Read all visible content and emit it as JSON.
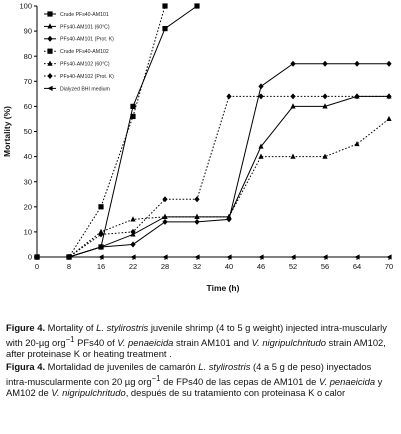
{
  "chart_data": {
    "type": "line",
    "xlabel": "Time (h)",
    "ylabel": "Mortality    (%)",
    "x_ticks": [
      0,
      8,
      16,
      22,
      28,
      32,
      40,
      46,
      52,
      56,
      64,
      70
    ],
    "y_ticks": [
      0,
      10,
      20,
      30,
      40,
      50,
      60,
      70,
      80,
      90,
      100
    ],
    "ylim": [
      0,
      100
    ],
    "x": [
      0,
      8,
      16,
      22,
      28,
      32,
      40,
      46,
      52,
      56,
      64,
      70
    ],
    "legend_position": "top-left",
    "series": [
      {
        "name": "Crude PFs40-AM101",
        "style": "solid",
        "marker": "square",
        "values": [
          0,
          0,
          4,
          60,
          91,
          100,
          null,
          null,
          null,
          null,
          null,
          null
        ]
      },
      {
        "name": "PFs40-AM101 (60°C)",
        "style": "solid",
        "marker": "triangle",
        "values": [
          0,
          0,
          4,
          9,
          16,
          16,
          16,
          44,
          60,
          60,
          64,
          64
        ]
      },
      {
        "name": "PFs40-AM101 (Prot. K)",
        "style": "solid",
        "marker": "diamond",
        "values": [
          0,
          0,
          4,
          5,
          14,
          14,
          15,
          68,
          77,
          77,
          77,
          77
        ]
      },
      {
        "name": "Crude PFs40-AM102",
        "style": "dotted",
        "marker": "square",
        "values": [
          0,
          0,
          20,
          56,
          100,
          null,
          null,
          null,
          null,
          null,
          null,
          null
        ]
      },
      {
        "name": "PFs40-AM102 (60°C)",
        "style": "dotted",
        "marker": "triangle",
        "values": [
          0,
          0,
          10,
          15,
          16,
          16,
          16,
          40,
          40,
          40,
          45,
          55
        ]
      },
      {
        "name": "PFs40-AM102 (Prot. K)",
        "style": "dotted",
        "marker": "diamond",
        "values": [
          0,
          0,
          9,
          10,
          23,
          23,
          64,
          64,
          64,
          64,
          64,
          64
        ]
      },
      {
        "name": "Dialyzed BHI medium",
        "style": "solid",
        "marker": "triangle-left",
        "values": [
          0,
          0,
          0,
          0,
          0,
          0,
          0,
          0,
          0,
          0,
          0,
          0
        ]
      }
    ]
  },
  "caption_en": {
    "label": "Figure 4.",
    "p1": " Mortality of ",
    "species1": "L. stylirostris",
    "p2": " juvenile shrimp (4 to 5 g weight) injected intra-muscularly with 20-µg org",
    "sup": "−1",
    "p3": " PFs40 of ",
    "species2": "V. penaeicida",
    "p4": " strain AM101 and ",
    "species3": "V. nigripulchritudo",
    "p5": " strain AM102, after proteinase K or heating treatment ."
  },
  "caption_es": {
    "label": "Figura 4.",
    "p1": " Mortalidad de juveniles de camarón ",
    "species1": "L. stylirostris",
    "p2": " (4 a 5 g de peso) inyectados intra-muscularmente con 20 µg org",
    "sup": "−1",
    "p3": " de FPs40 de las cepas de AM101 de ",
    "species2": "V. penaeicida",
    "p4": " y AM102 de ",
    "species3": "V. nigripulchritudo",
    "p5": ", después de su tratamiento con proteinasa K o calor"
  }
}
